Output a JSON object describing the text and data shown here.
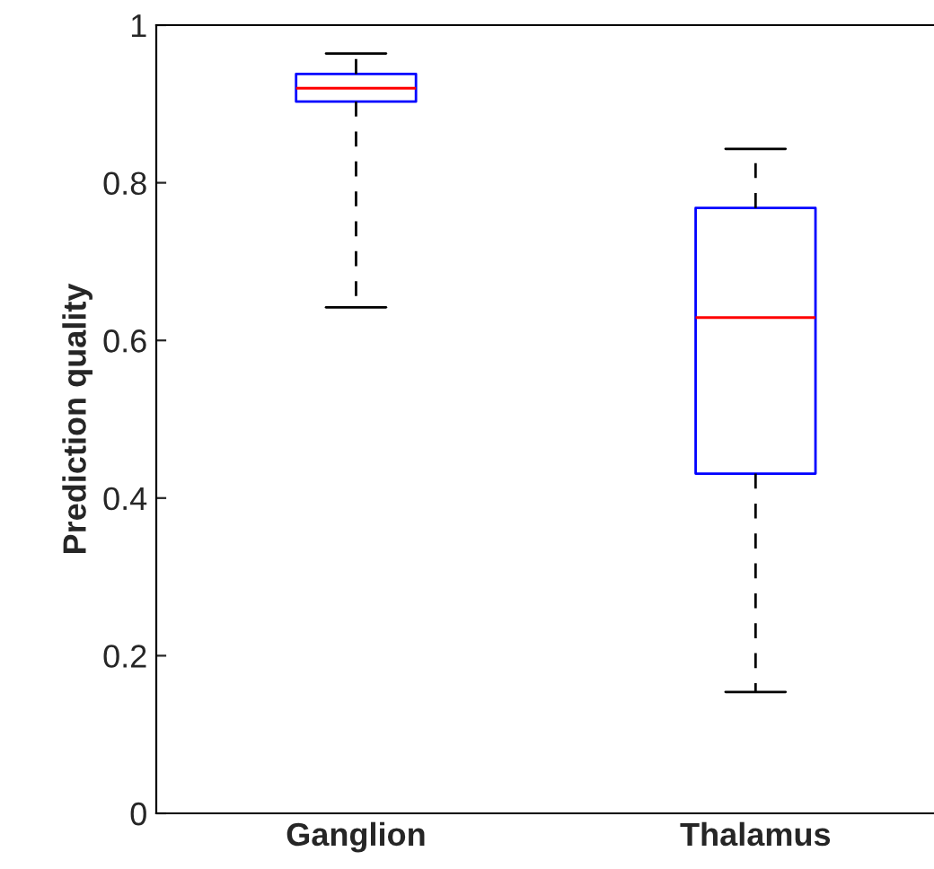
{
  "chart_data": {
    "type": "box",
    "ylabel": "Prediction quality",
    "categories": [
      "Ganglion",
      "Thalamus"
    ],
    "boxes": [
      {
        "low": 0.642,
        "q1": 0.903,
        "median": 0.92,
        "q3": 0.938,
        "high": 0.964
      },
      {
        "low": 0.154,
        "q1": 0.431,
        "median": 0.629,
        "q3": 0.768,
        "high": 0.843
      }
    ],
    "ylim": [
      0,
      1
    ],
    "yticks": [
      0,
      {
        "value": 0.2,
        "label": "0.2"
      },
      {
        "value": 0.4,
        "label": "0.4"
      },
      {
        "value": 0.6,
        "label": "0.6"
      },
      {
        "value": 0.8,
        "label": "0.8"
      },
      1
    ],
    "color": "#0000ff",
    "grid": false
  }
}
